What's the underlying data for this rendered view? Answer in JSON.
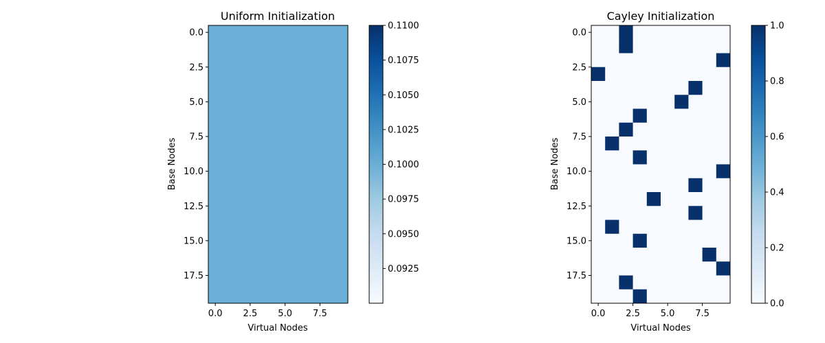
{
  "chart_data": [
    {
      "type": "heatmap",
      "title": "Uniform Initialization",
      "xlabel": "Virtual Nodes",
      "ylabel": "Base Nodes",
      "rows": 20,
      "cols": 10,
      "fill_value": 0.1,
      "colormap": "Blues",
      "color_range": [
        0.09,
        0.11
      ],
      "xticks": [
        0.0,
        2.5,
        5.0,
        7.5
      ],
      "xtick_labels": [
        "0.0",
        "2.5",
        "5.0",
        "7.5"
      ],
      "yticks": [
        0.0,
        2.5,
        5.0,
        7.5,
        10.0,
        12.5,
        15.0,
        17.5
      ],
      "ytick_labels": [
        "0.0",
        "2.5",
        "5.0",
        "7.5",
        "10.0",
        "12.5",
        "15.0",
        "17.5"
      ],
      "colorbar": {
        "ticks": [
          0.0925,
          0.095,
          0.0975,
          0.1,
          0.1025,
          0.105,
          0.1075,
          0.11
        ],
        "tick_labels": [
          "0.0925",
          "0.0950",
          "0.0975",
          "0.1000",
          "0.1025",
          "0.1050",
          "0.1075",
          "0.1100"
        ]
      }
    },
    {
      "type": "heatmap",
      "title": "Cayley Initialization",
      "xlabel": "Virtual Nodes",
      "ylabel": "Base Nodes",
      "rows": 20,
      "cols": 10,
      "colormap": "Blues",
      "color_range": [
        0,
        1
      ],
      "ones": [
        [
          0,
          2
        ],
        [
          1,
          2
        ],
        [
          2,
          9
        ],
        [
          3,
          0
        ],
        [
          4,
          7
        ],
        [
          5,
          6
        ],
        [
          6,
          3
        ],
        [
          7,
          2
        ],
        [
          8,
          1
        ],
        [
          9,
          3
        ],
        [
          10,
          9
        ],
        [
          11,
          7
        ],
        [
          12,
          4
        ],
        [
          13,
          7
        ],
        [
          14,
          1
        ],
        [
          15,
          3
        ],
        [
          16,
          8
        ],
        [
          17,
          9
        ],
        [
          18,
          2
        ],
        [
          19,
          3
        ]
      ],
      "xticks": [
        0.0,
        2.5,
        5.0,
        7.5
      ],
      "xtick_labels": [
        "0.0",
        "2.5",
        "5.0",
        "7.5"
      ],
      "yticks": [
        0.0,
        2.5,
        5.0,
        7.5,
        10.0,
        12.5,
        15.0,
        17.5
      ],
      "ytick_labels": [
        "0.0",
        "2.5",
        "5.0",
        "7.5",
        "10.0",
        "12.5",
        "15.0",
        "17.5"
      ],
      "colorbar": {
        "ticks": [
          0.0,
          0.2,
          0.4,
          0.6,
          0.8,
          1.0
        ],
        "tick_labels": [
          "0.0",
          "0.2",
          "0.4",
          "0.6",
          "0.8",
          "1.0"
        ]
      }
    }
  ],
  "colors": {
    "blues_low": "#f7fbff",
    "blues_high": "#08306b",
    "uniform_cell": "#6baed6"
  }
}
